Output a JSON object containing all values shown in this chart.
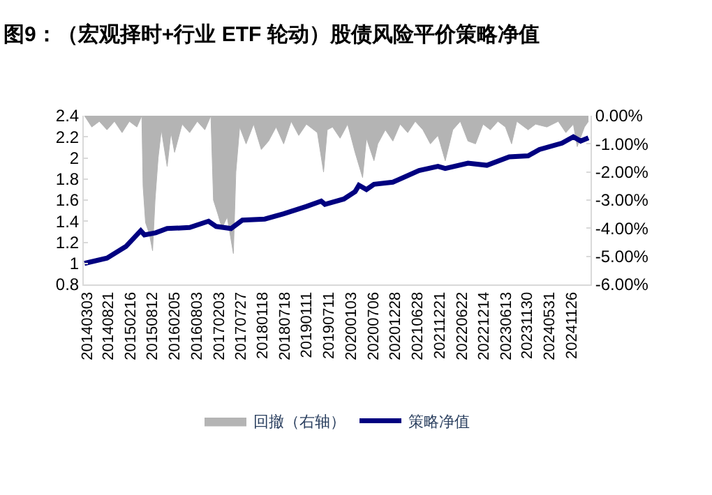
{
  "chart_data": {
    "type": "line",
    "title": "图9：（宏观择时+行业 ETF 轮动）股债风险平价策略净值",
    "xlim": [
      "2014-02-25",
      "2025-05-20"
    ],
    "xticks": [
      {
        "value": "2014-03-03",
        "label": "20140303"
      },
      {
        "value": "2014-08-21",
        "label": "20140821"
      },
      {
        "value": "2015-02-16",
        "label": "20150216"
      },
      {
        "value": "2015-08-12",
        "label": "20150812"
      },
      {
        "value": "2016-02-05",
        "label": "20160205"
      },
      {
        "value": "2016-08-03",
        "label": "20160803"
      },
      {
        "value": "2017-02-03",
        "label": "20170203"
      },
      {
        "value": "2017-07-27",
        "label": "20170727"
      },
      {
        "value": "2018-01-18",
        "label": "20180118"
      },
      {
        "value": "2018-07-18",
        "label": "20180718"
      },
      {
        "value": "2019-01-11",
        "label": "20190111"
      },
      {
        "value": "2019-07-11",
        "label": "20190711"
      },
      {
        "value": "2020-01-03",
        "label": "20200103"
      },
      {
        "value": "2020-07-06",
        "label": "20200706"
      },
      {
        "value": "2020-12-28",
        "label": "20201228"
      },
      {
        "value": "2021-06-28",
        "label": "20210628"
      },
      {
        "value": "2021-12-21",
        "label": "20211221"
      },
      {
        "value": "2022-06-22",
        "label": "20220622"
      },
      {
        "value": "2022-12-14",
        "label": "20221214"
      },
      {
        "value": "2023-06-13",
        "label": "20230613"
      },
      {
        "value": "2023-11-30",
        "label": "20231130"
      },
      {
        "value": "2024-05-31",
        "label": "20240531"
      },
      {
        "value": "2024-11-26",
        "label": "20241126"
      }
    ],
    "ylim": [
      0.8,
      2.4
    ],
    "yticks": [
      0.8,
      1,
      1.2,
      1.4,
      1.6,
      1.8,
      2,
      2.2,
      2.4
    ],
    "y2lim": [
      -6,
      0
    ],
    "y2ticks": [
      {
        "value": -6,
        "label": "-6.00%"
      },
      {
        "value": -5,
        "label": "-5.00%"
      },
      {
        "value": -4,
        "label": "-4.00%"
      },
      {
        "value": -3,
        "label": "-3.00%"
      },
      {
        "value": -2,
        "label": "-2.00%"
      },
      {
        "value": -1,
        "label": "-1.00%"
      },
      {
        "value": 0,
        "label": "0.00%"
      }
    ],
    "grid": false,
    "legend": "bottom",
    "marker": "none",
    "line_style": "solid",
    "series": [
      {
        "name": "回撤（右轴）",
        "type": "area",
        "axis": "y2",
        "color": "#b4b4b4",
        "x": [
          "2014-03-03",
          "2014-05-01",
          "2014-07-01",
          "2014-09-01",
          "2014-11-01",
          "2015-01-01",
          "2015-03-01",
          "2015-05-01",
          "2015-06-10",
          "2015-06-20",
          "2015-07-10",
          "2015-08-10",
          "2015-09-05",
          "2015-09-25",
          "2015-10-20",
          "2015-11-15",
          "2016-01-01",
          "2016-02-01",
          "2016-03-01",
          "2016-05-01",
          "2016-07-01",
          "2016-09-01",
          "2016-11-01",
          "2016-12-20",
          "2017-01-10",
          "2017-02-15",
          "2017-03-20",
          "2017-05-01",
          "2017-06-20",
          "2017-07-10",
          "2017-08-10",
          "2017-10-01",
          "2017-12-01",
          "2018-02-01",
          "2018-04-01",
          "2018-06-01",
          "2018-08-01",
          "2018-10-01",
          "2018-12-01",
          "2019-02-01",
          "2019-05-01",
          "2019-06-20",
          "2019-07-20",
          "2019-09-01",
          "2019-11-01",
          "2020-01-01",
          "2020-03-01",
          "2020-05-01",
          "2020-06-01",
          "2020-08-01",
          "2020-09-01",
          "2020-11-01",
          "2021-01-01",
          "2021-03-01",
          "2021-05-01",
          "2021-07-01",
          "2021-09-01",
          "2021-11-01",
          "2022-01-01",
          "2022-03-01",
          "2022-05-01",
          "2022-07-01",
          "2022-09-01",
          "2022-11-01",
          "2023-01-01",
          "2023-03-01",
          "2023-05-01",
          "2023-07-01",
          "2023-08-20",
          "2023-10-01",
          "2024-01-01",
          "2024-03-01",
          "2024-06-01",
          "2024-09-01",
          "2024-11-01",
          "2025-01-01",
          "2025-02-01",
          "2025-04-01",
          "2025-05-03"
        ],
        "values": [
          0,
          -0.4,
          -0.2,
          -0.5,
          -0.2,
          -0.6,
          -0.2,
          -0.4,
          0,
          -2.5,
          -3.8,
          -4.2,
          -4.8,
          -3.0,
          -1.5,
          -0.5,
          -1.8,
          -0.6,
          -1.3,
          -0.3,
          -0.6,
          -0.2,
          -0.5,
          0,
          -3.0,
          -3.5,
          -4.0,
          -3.6,
          -4.9,
          -2.0,
          -0.4,
          -1.0,
          -0.3,
          -1.2,
          -0.9,
          -0.4,
          -1.0,
          -0.2,
          -0.7,
          -0.3,
          -0.6,
          -2.0,
          -0.5,
          -0.4,
          -0.8,
          -0.3,
          -1.3,
          -2.2,
          -0.8,
          -1.6,
          -1.0,
          -0.5,
          -0.9,
          -0.3,
          -0.6,
          -0.2,
          -0.5,
          -1.0,
          -0.7,
          -1.6,
          -0.5,
          -0.2,
          -0.9,
          -1.0,
          -0.3,
          -0.5,
          -0.2,
          -0.4,
          -1.0,
          -0.2,
          -0.5,
          -0.3,
          -0.4,
          -0.2,
          -0.6,
          -0.3,
          -1.1,
          -0.4,
          -0.2
        ]
      },
      {
        "name": "策略净值",
        "color": "#000080",
        "x": [
          "2014-03-03",
          "2014-09-01",
          "2015-02-01",
          "2015-06-01",
          "2015-07-01",
          "2015-10-01",
          "2016-01-01",
          "2016-07-01",
          "2016-12-01",
          "2017-02-01",
          "2017-06-01",
          "2017-09-01",
          "2018-03-01",
          "2018-08-01",
          "2019-02-01",
          "2019-06-01",
          "2019-07-01",
          "2019-12-01",
          "2020-03-01",
          "2020-04-01",
          "2020-06-01",
          "2020-08-01",
          "2021-01-01",
          "2021-08-01",
          "2022-01-01",
          "2022-03-01",
          "2022-09-01",
          "2023-02-01",
          "2023-08-01",
          "2024-01-01",
          "2024-04-01",
          "2024-10-01",
          "2025-01-01",
          "2025-03-01",
          "2025-05-03"
        ],
        "values": [
          1.0,
          1.05,
          1.16,
          1.31,
          1.27,
          1.29,
          1.33,
          1.34,
          1.4,
          1.35,
          1.33,
          1.41,
          1.42,
          1.47,
          1.54,
          1.59,
          1.56,
          1.61,
          1.68,
          1.74,
          1.7,
          1.75,
          1.77,
          1.88,
          1.92,
          1.9,
          1.95,
          1.93,
          2.01,
          2.02,
          2.08,
          2.14,
          2.2,
          2.16,
          2.19
        ]
      }
    ]
  }
}
